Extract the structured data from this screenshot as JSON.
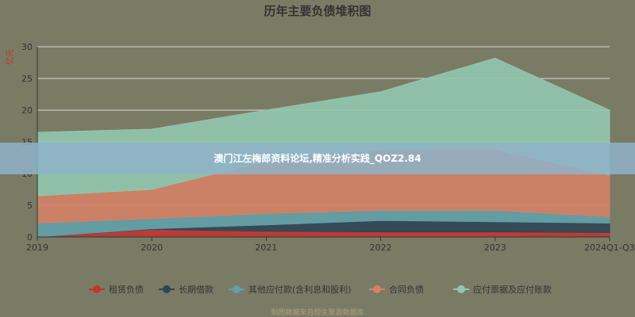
{
  "chart_data": {
    "type": "area",
    "stacked": true,
    "title": "历年主要负债堆积图",
    "ylabel": "亿元",
    "categories": [
      "2019",
      "2020",
      "2021",
      "2022",
      "2023",
      "2024Q1-Q3"
    ],
    "ylim": [
      0,
      30
    ],
    "yticks": [
      0,
      5,
      10,
      15,
      20,
      25,
      30
    ],
    "grid": true,
    "legend_position": "bottom",
    "series": [
      {
        "name": "租赁负债",
        "color": "#c23531",
        "values": [
          0.0,
          1.2,
          0.9,
          0.8,
          0.8,
          0.7
        ]
      },
      {
        "name": "长期借款",
        "color": "#2f4554",
        "values": [
          0.0,
          0.1,
          1.0,
          1.8,
          1.6,
          1.5
        ]
      },
      {
        "name": "其他应付款(含利息和股利)",
        "color": "#61a0a8",
        "values": [
          2.2,
          1.6,
          1.8,
          1.6,
          1.8,
          1.0
        ]
      },
      {
        "name": "合同负债",
        "color": "#d48265",
        "values": [
          4.3,
          4.6,
          8.3,
          9.6,
          9.6,
          6.6
        ]
      },
      {
        "name": "应付票据及应付账款",
        "color": "#91c7ae",
        "values": [
          10.0,
          9.5,
          8.0,
          9.1,
          14.4,
          10.2
        ]
      }
    ]
  },
  "overlay": {
    "banner": "澳门江左梅郎资料论坛,精准分析实践_QOZ2.84"
  },
  "footer": {
    "note": "制图数据来自恒生聚源数据库"
  }
}
